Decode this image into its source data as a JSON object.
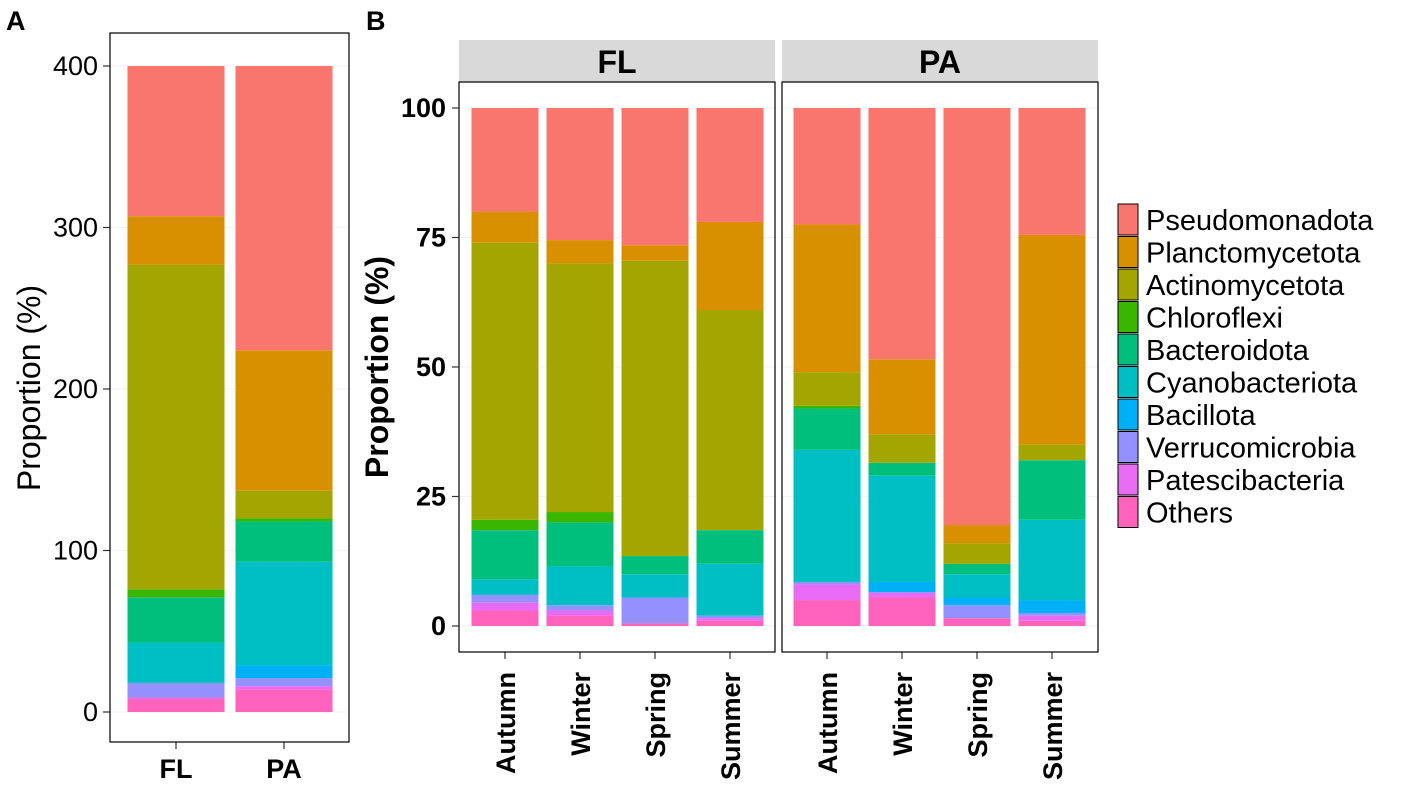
{
  "panel_letters": {
    "a": "A",
    "b": "B"
  },
  "colors": {
    "Pseudomonadota": "#F8766D",
    "Planctomycetota": "#D89000",
    "Actinomycetota": "#A3A500",
    "Chloroflexi": "#39B600",
    "Bacteroidota": "#00BF7D",
    "Cyanobacteriota": "#00BFC4",
    "Bacillota": "#00B0F6",
    "Verrucomicrobia": "#9590FF",
    "Patescibacteria": "#E76BF3",
    "Others": "#FF62BC"
  },
  "chart_data": [
    {
      "type": "bar",
      "stacked": true,
      "panel": "A",
      "ylabel": "Proportion (%)",
      "ylim": [
        0,
        400
      ],
      "yticks": [
        "0",
        "100",
        "200",
        "300",
        "400"
      ],
      "categories": [
        "FL",
        "PA"
      ],
      "series": [
        {
          "name": "Others",
          "values": [
            8,
            14
          ]
        },
        {
          "name": "Patescibacteria",
          "values": [
            1,
            2
          ]
        },
        {
          "name": "Verrucomicrobia",
          "values": [
            9,
            5
          ]
        },
        {
          "name": "Bacillota",
          "values": [
            0,
            8
          ]
        },
        {
          "name": "Cyanobacteriota",
          "values": [
            25,
            64
          ]
        },
        {
          "name": "Bacteroidota",
          "values": [
            28,
            25
          ]
        },
        {
          "name": "Chloroflexi",
          "values": [
            5,
            2
          ]
        },
        {
          "name": "Actinomycetota",
          "values": [
            201,
            17
          ]
        },
        {
          "name": "Planctomycetota",
          "values": [
            30,
            87
          ]
        },
        {
          "name": "Pseudomonadota",
          "values": [
            93,
            176
          ]
        }
      ]
    },
    {
      "type": "bar",
      "stacked": true,
      "panel": "B",
      "ylabel": "Proportion (%)",
      "ylim": [
        0,
        100
      ],
      "yticks": [
        "0",
        "25",
        "50",
        "75",
        "100"
      ],
      "facets": [
        "FL",
        "PA"
      ],
      "categories": [
        "Autumn",
        "Winter",
        "Spring",
        "Summer"
      ],
      "groups": [
        {
          "facet": "FL",
          "series": [
            {
              "name": "Others",
              "values": [
                3,
                2,
                0.5,
                1
              ]
            },
            {
              "name": "Patescibacteria",
              "values": [
                1.5,
                1,
                0,
                0.5
              ]
            },
            {
              "name": "Verrucomicrobia",
              "values": [
                1.5,
                1,
                5,
                0.5
              ]
            },
            {
              "name": "Bacillota",
              "values": [
                0,
                0,
                0,
                0
              ]
            },
            {
              "name": "Cyanobacteriota",
              "values": [
                3,
                7.5,
                4.5,
                10
              ]
            },
            {
              "name": "Bacteroidota",
              "values": [
                9.5,
                8.5,
                3.5,
                6.5
              ]
            },
            {
              "name": "Chloroflexi",
              "values": [
                2,
                2,
                0,
                0
              ]
            },
            {
              "name": "Actinomycetota",
              "values": [
                53.5,
                48,
                57,
                42.5
              ]
            },
            {
              "name": "Planctomycetota",
              "values": [
                6,
                4.5,
                3,
                17
              ]
            },
            {
              "name": "Pseudomonadota",
              "values": [
                20,
                25.5,
                26.5,
                22
              ]
            }
          ]
        },
        {
          "facet": "PA",
          "series": [
            {
              "name": "Others",
              "values": [
                5,
                5.5,
                1.5,
                1
              ]
            },
            {
              "name": "Patescibacteria",
              "values": [
                3,
                1,
                0,
                1
              ]
            },
            {
              "name": "Verrucomicrobia",
              "values": [
                0.5,
                0,
                2.5,
                0.5
              ]
            },
            {
              "name": "Bacillota",
              "values": [
                0,
                2,
                1.5,
                2.5
              ]
            },
            {
              "name": "Cyanobacteriota",
              "values": [
                25.5,
                20.5,
                4.5,
                15.5
              ]
            },
            {
              "name": "Bacteroidota",
              "values": [
                8,
                2.5,
                2,
                11.5
              ]
            },
            {
              "name": "Chloroflexi",
              "values": [
                0.5,
                0,
                0,
                0
              ]
            },
            {
              "name": "Actinomycetota",
              "values": [
                6.5,
                5.5,
                4,
                3
              ]
            },
            {
              "name": "Planctomycetota",
              "values": [
                28.5,
                14.5,
                3.5,
                40.5
              ]
            },
            {
              "name": "Pseudomonadota",
              "values": [
                22.5,
                48.5,
                80.5,
                24.5
              ]
            }
          ]
        }
      ]
    }
  ],
  "legend": {
    "placement": "right",
    "items": [
      "Pseudomonadota",
      "Planctomycetota",
      "Actinomycetota",
      "Chloroflexi",
      "Bacteroidota",
      "Cyanobacteriota",
      "Bacillota",
      "Verrucomicrobia",
      "Patescibacteria",
      "Others"
    ]
  }
}
